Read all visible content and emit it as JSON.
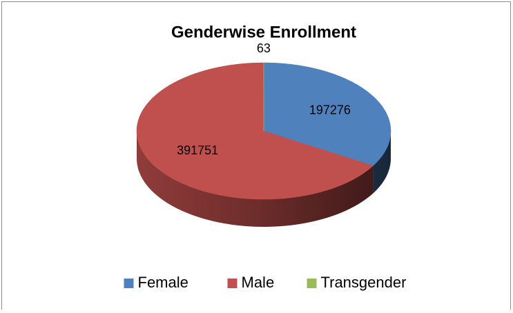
{
  "chart_data": {
    "type": "pie3d",
    "title": "Genderwise Enrollment",
    "categories": [
      "Female",
      "Male",
      "Transgender"
    ],
    "values": [
      197276,
      391751,
      63
    ],
    "colors": [
      "#4f81bd",
      "#c0504d",
      "#9bbb59"
    ],
    "legend": "bottom"
  }
}
